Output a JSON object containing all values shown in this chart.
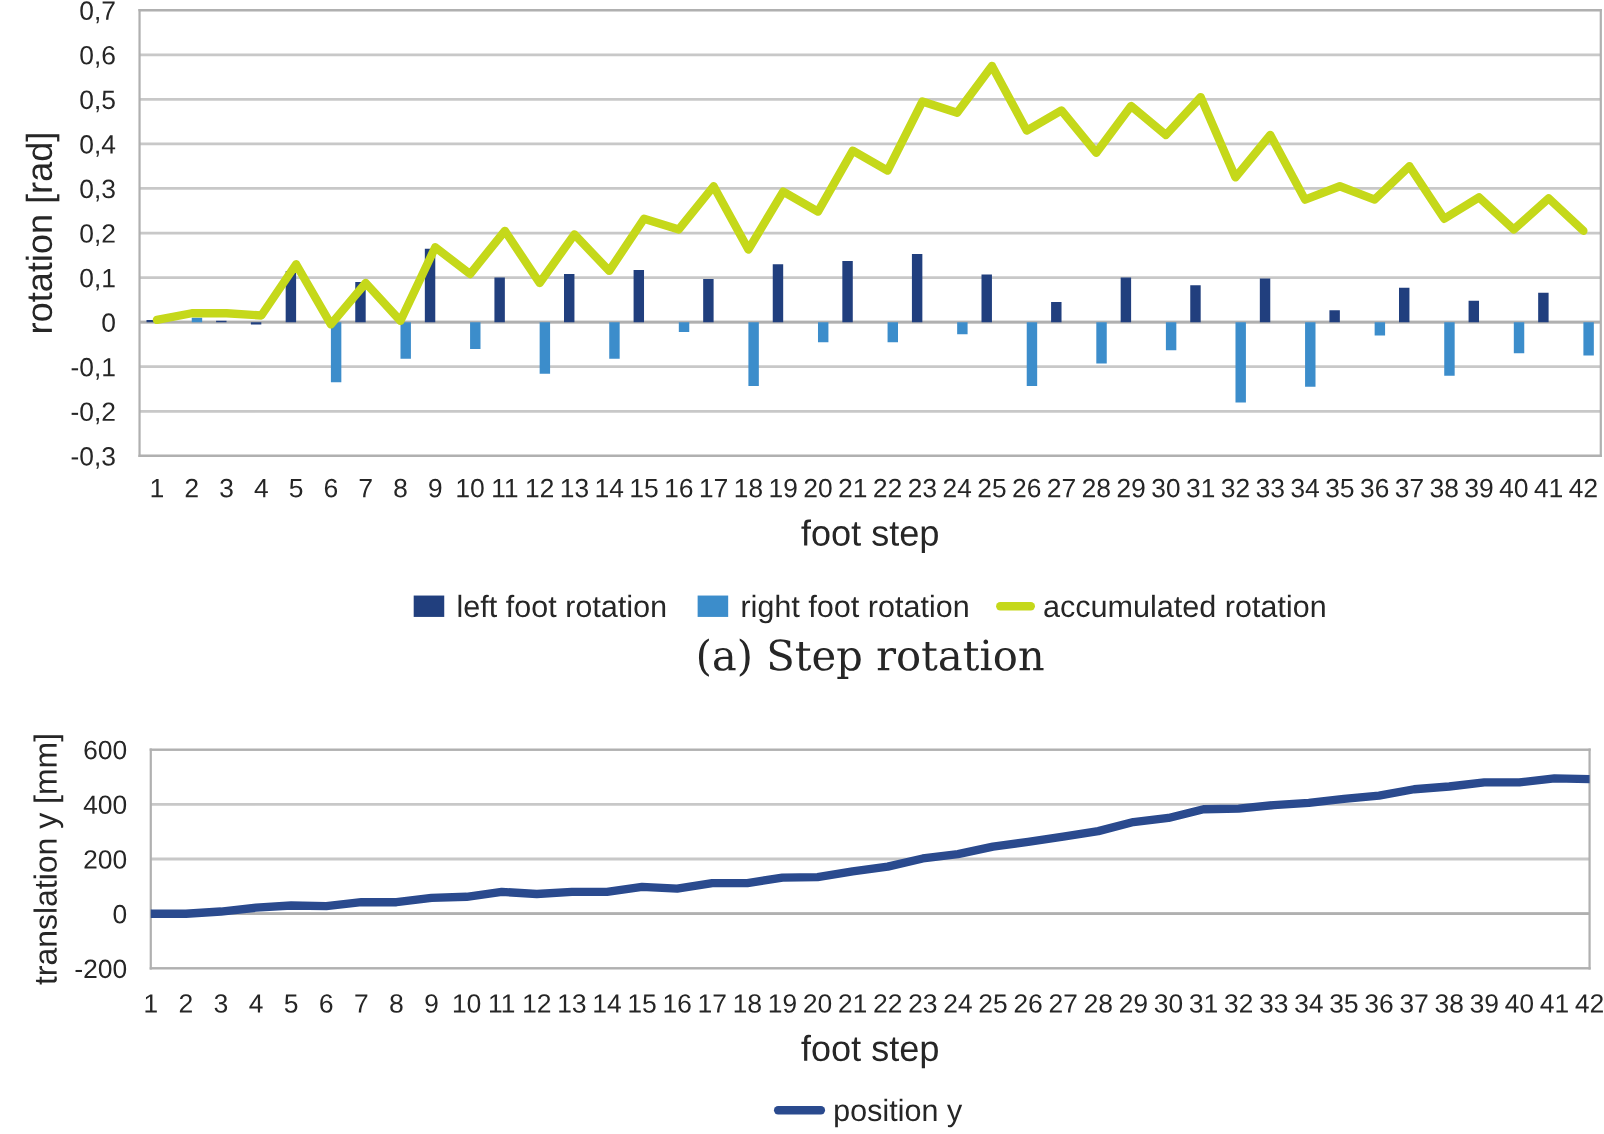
{
  "chart_data": [
    {
      "type": "bar",
      "ylabel": "rotation [rad]",
      "xlabel": "foot step",
      "categories": [
        "1",
        "2",
        "3",
        "4",
        "5",
        "6",
        "7",
        "8",
        "9",
        "10",
        "11",
        "12",
        "13",
        "14",
        "15",
        "16",
        "17",
        "18",
        "19",
        "20",
        "21",
        "22",
        "23",
        "24",
        "25",
        "26",
        "27",
        "28",
        "29",
        "30",
        "31",
        "32",
        "33",
        "34",
        "35",
        "36",
        "37",
        "38",
        "39",
        "40",
        "41",
        "42"
      ],
      "series": [
        {
          "name": "left foot rotation",
          "color": "#213f7e",
          "values": [
            0.005,
            0,
            0.003,
            -0.005,
            0.115,
            0,
            0.09,
            0,
            0.165,
            0,
            0.1,
            0,
            0.108,
            0,
            0.117,
            0,
            0.097,
            0,
            0.13,
            0,
            0.137,
            0,
            0.153,
            0,
            0.107,
            0,
            0.045,
            0,
            0.1,
            0,
            0.083,
            0,
            0.098,
            0,
            0.027,
            0,
            0.077,
            0,
            0.048,
            0,
            0.066,
            0
          ]
        },
        {
          "name": "right foot rotation",
          "color": "#3c8dcb",
          "values": [
            0,
            0.01,
            0,
            0,
            0,
            -0.135,
            0,
            -0.082,
            0,
            -0.06,
            0,
            -0.116,
            0,
            -0.082,
            0,
            -0.022,
            0,
            -0.143,
            0,
            -0.045,
            0,
            -0.045,
            0,
            -0.027,
            0,
            -0.143,
            0,
            -0.093,
            0,
            -0.063,
            0,
            -0.18,
            0,
            -0.145,
            0,
            -0.03,
            0,
            -0.12,
            0,
            -0.07,
            0,
            -0.075
          ]
        },
        {
          "name": "accumulated rotation",
          "type": "line",
          "color": "#c5d81a",
          "values": [
            0.005,
            0.02,
            0.02,
            0.015,
            0.13,
            -0.005,
            0.088,
            0.003,
            0.168,
            0.108,
            0.205,
            0.088,
            0.197,
            0.115,
            0.232,
            0.208,
            0.305,
            0.163,
            0.293,
            0.248,
            0.385,
            0.34,
            0.495,
            0.47,
            0.575,
            0.43,
            0.475,
            0.38,
            0.485,
            0.42,
            0.505,
            0.325,
            0.42,
            0.275,
            0.305,
            0.275,
            0.35,
            0.232,
            0.28,
            0.208,
            0.278,
            0.205
          ]
        }
      ],
      "ylim": [
        -0.3,
        0.7
      ],
      "yticks": [
        {
          "value": -0.3,
          "label": "-0,3"
        },
        {
          "value": -0.2,
          "label": "-0,2"
        },
        {
          "value": -0.1,
          "label": "-0,1"
        },
        0,
        {
          "value": 0.1,
          "label": "0,1"
        },
        {
          "value": 0.2,
          "label": "0,2"
        },
        {
          "value": 0.3,
          "label": "0,3"
        },
        {
          "value": 0.4,
          "label": "0,4"
        },
        {
          "value": 0.5,
          "label": "0,5"
        },
        {
          "value": 0.6,
          "label": "0,6"
        },
        {
          "value": 0.7,
          "label": "0,7"
        }
      ],
      "grid": "y",
      "legend": "bottom",
      "annotations": [
        "(a) Step rotation"
      ]
    },
    {
      "type": "line",
      "ylabel": "translation y [mm]",
      "xlabel": "foot step",
      "categories": [
        "1",
        "2",
        "3",
        "4",
        "5",
        "6",
        "7",
        "8",
        "9",
        "10",
        "11",
        "12",
        "13",
        "14",
        "15",
        "16",
        "17",
        "18",
        "19",
        "20",
        "21",
        "22",
        "23",
        "24",
        "25",
        "26",
        "27",
        "28",
        "29",
        "30",
        "31",
        "32",
        "33",
        "34",
        "35",
        "36",
        "37",
        "38",
        "39",
        "40",
        "41",
        "42"
      ],
      "series": [
        {
          "name": "position y",
          "color": "#2a4a8e",
          "values": [
            0,
            0,
            8,
            22,
            30,
            28,
            42,
            42,
            58,
            62,
            80,
            72,
            80,
            80,
            98,
            92,
            112,
            112,
            132,
            134,
            155,
            172,
            202,
            218,
            245,
            263,
            282,
            302,
            335,
            350,
            382,
            384,
            397,
            405,
            420,
            432,
            455,
            465,
            480,
            480,
            495,
            492
          ]
        }
      ],
      "ylim": [
        -200,
        600
      ],
      "yticks": [
        -200,
        0,
        200,
        400,
        600
      ],
      "grid": "y",
      "legend": "bottom"
    }
  ]
}
